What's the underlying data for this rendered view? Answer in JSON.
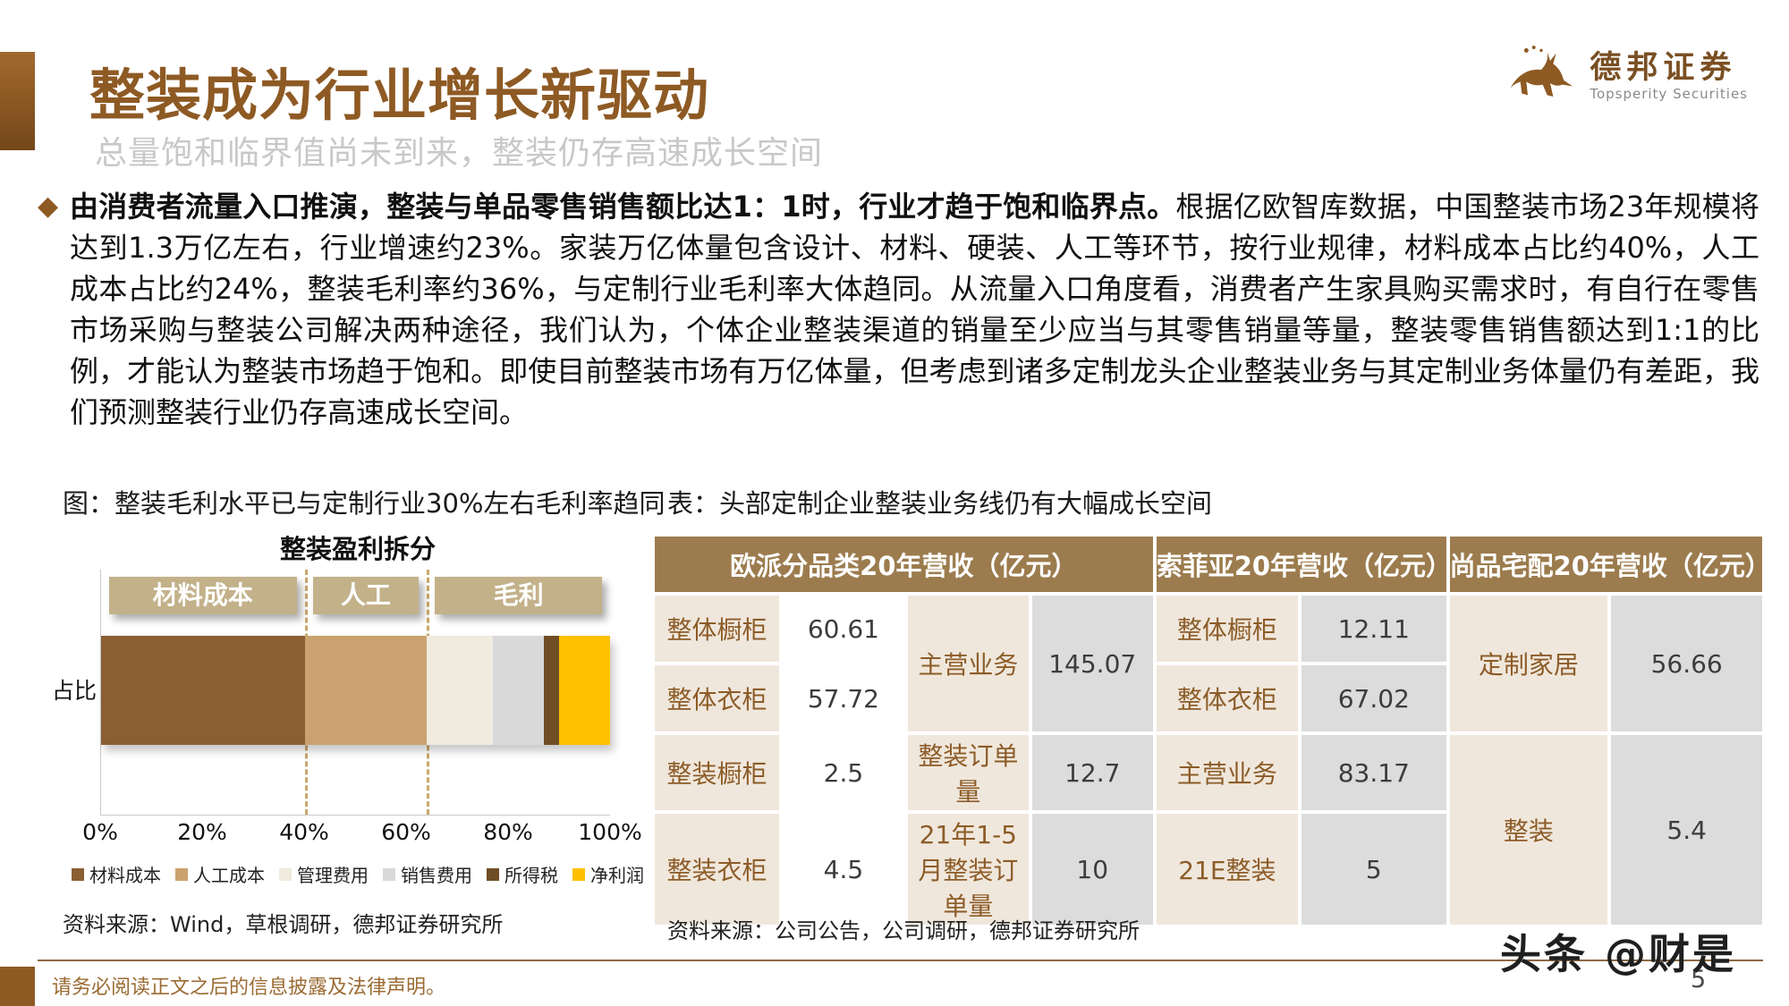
{
  "header": {
    "title": "整装成为行业增长新驱动",
    "subtitle": "总量饱和临界值尚未到来，整装仍存高速成长空间",
    "logo_cn": "德邦证券",
    "logo_en": "Topsperity Securities"
  },
  "body": {
    "bullet": "◆",
    "lead_bold": "由消费者流量入口推演，整装与单品零售销售额比达1：1时，行业才趋于饱和临界点。",
    "text": "根据亿欧智库数据，中国整装市场23年规模将达到1.3万亿左右，行业增速约23%。家装万亿体量包含设计、材料、硬装、人工等环节，按行业规律，材料成本占比约40%，人工成本占比约24%，整装毛利率约36%，与定制行业毛利率大体趋同。从流量入口角度看，消费者产生家具购买需求时，有自行在零售市场采购与整装公司解决两种途径，我们认为，个体企业整装渠道的销量至少应当与其零售销量等量，整装零售销售额达到1:1的比例，才能认为整装市场趋于饱和。即使目前整装市场有万亿体量，但考虑到诸多定制龙头企业整装业务与其定制业务体量仍有差距，我们预测整装行业仍存高速成长空间。"
  },
  "figure": {
    "caption": "图：整装毛利水平已与定制行业30%左右毛利率趋同",
    "source": "资料来源：Wind，草根调研，德邦证券研究所"
  },
  "chart_data": {
    "type": "bar",
    "orientation": "horizontal-stacked",
    "title": "整装盈利拆分",
    "ylabel": "占比",
    "xlim": [
      0,
      100
    ],
    "x_ticks": [
      "0%",
      "20%",
      "40%",
      "60%",
      "80%",
      "100%"
    ],
    "grid": false,
    "legend_position": "bottom",
    "segments": [
      {
        "name": "材料成本",
        "value": 40,
        "color": "#8a5f33"
      },
      {
        "name": "人工成本",
        "value": 24,
        "color": "#c9a26f"
      },
      {
        "name": "管理费用",
        "value": 13,
        "color": "#efebdf"
      },
      {
        "name": "销售费用",
        "value": 10,
        "color": "#d9d9d9"
      },
      {
        "name": "所得税",
        "value": 3,
        "color": "#6f4e24"
      },
      {
        "name": "净利润",
        "value": 10,
        "color": "#ffc000"
      }
    ],
    "dashed_lines_at": [
      40,
      64
    ],
    "annotations": [
      {
        "label": "材料成本"
      },
      {
        "label": "人工"
      },
      {
        "label": "毛利"
      }
    ]
  },
  "table": {
    "caption": "表：头部定制企业整装业务线仍有大幅成长空间",
    "source": "资料来源：公司公告，公司调研，德邦证券研究所",
    "headers": {
      "oupai": "欧派分品类20年营收（亿元）",
      "sofia": "索菲亚20年营收（亿元）",
      "shangpin": "尚品宅配20年营收（亿元）"
    },
    "cells": {
      "oupai_r1_label": "整体橱柜",
      "oupai_r1_value": "60.61",
      "oupai_r2_label": "整体衣柜",
      "oupai_r2_value": "57.72",
      "oupai_r3_label": "整装橱柜",
      "oupai_r3_value": "2.5",
      "oupai_r4_label": "整装衣柜",
      "oupai_r4_value": "4.5",
      "oupai_main_label": "主营业务",
      "oupai_main_value": "145.07",
      "oupai_order_label": "整装订单量",
      "oupai_order_value": "12.7",
      "oupai_order2_label": "21年1-5月整装订单量",
      "oupai_order2_value": "10",
      "sofia_r1_label": "整体橱柜",
      "sofia_r1_value": "12.11",
      "sofia_r2_label": "整体衣柜",
      "sofia_r2_value": "67.02",
      "sofia_r3_label": "主营业务",
      "sofia_r3_value": "83.17",
      "sofia_r4_label": "21E整装",
      "sofia_r4_value": "5",
      "sp_custom_label": "定制家居",
      "sp_custom_value": "56.66",
      "sp_zz_label": "整装",
      "sp_zz_value": "5.4"
    }
  },
  "footer": {
    "disclaimer": "请务必阅读正文之后的信息披露及法律声明。",
    "page_number": "5",
    "watermark": "头条 @财是"
  }
}
